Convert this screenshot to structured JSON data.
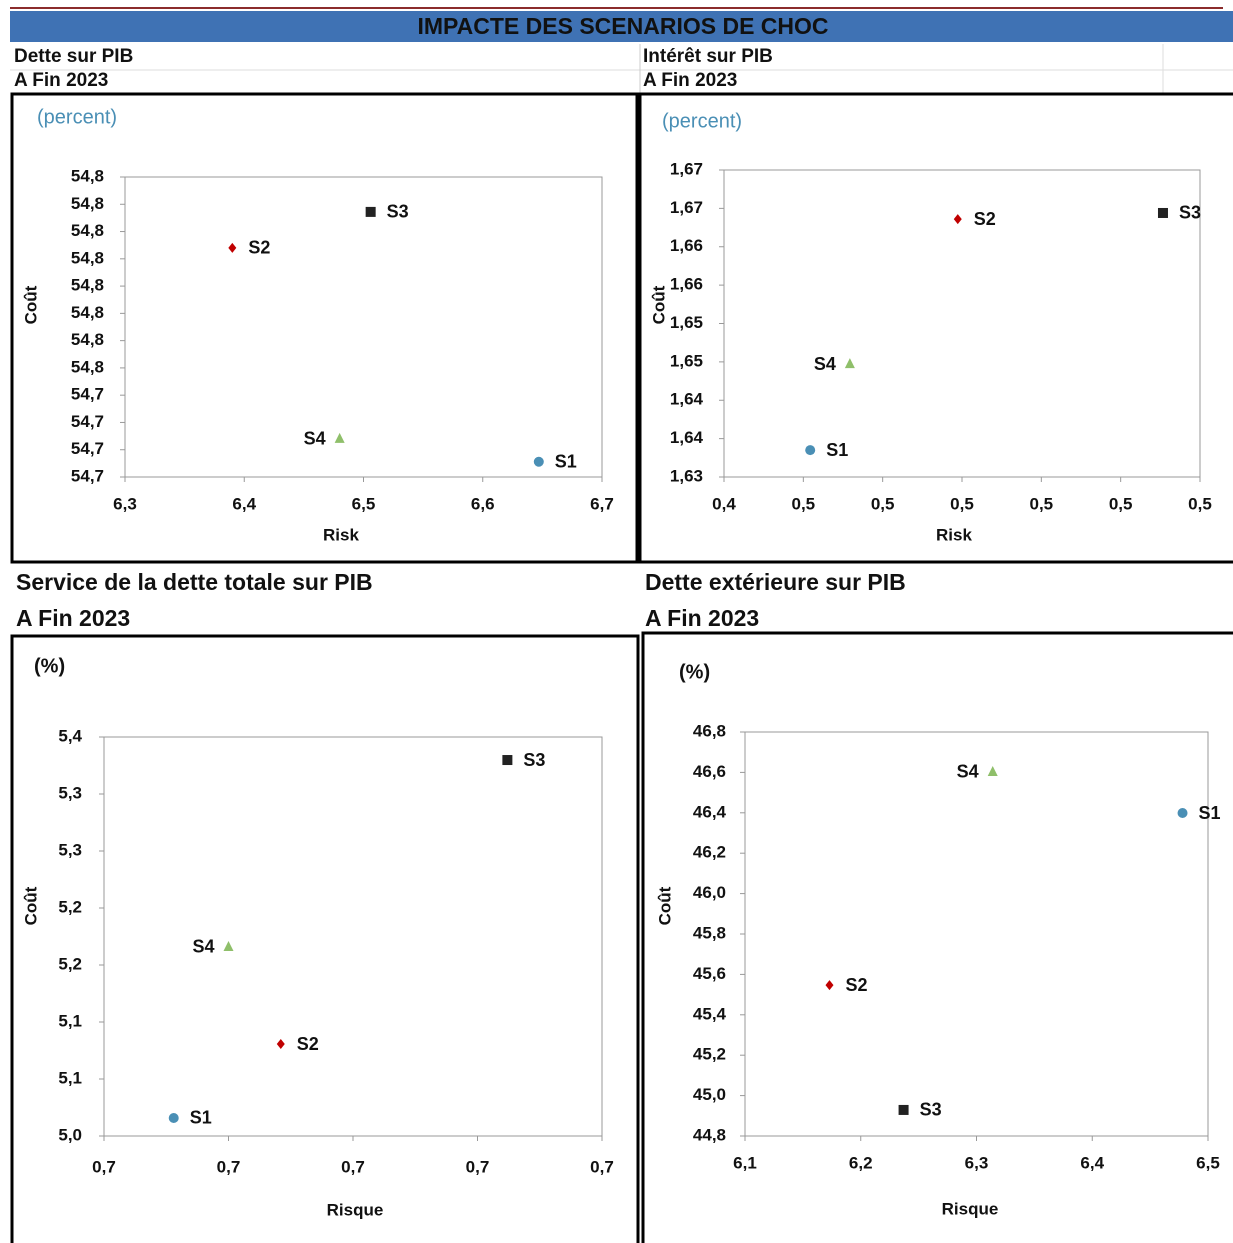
{
  "header": {
    "title": "IMPACTE DES SCENARIOS DE CHOC"
  },
  "chart_data": [
    {
      "type": "scatter",
      "title": "Dette sur PIB",
      "subtitle": "A Fin 2023",
      "annotation": "(percent)",
      "x_label": "Risk",
      "y_label": "Coût",
      "xlim": [
        6.3,
        6.7
      ],
      "xticks": [
        {
          "value": 6.3,
          "label": "6,3"
        },
        {
          "value": 6.4,
          "label": "6,4"
        },
        {
          "value": 6.5,
          "label": "6,5"
        },
        {
          "value": 6.6,
          "label": "6,6"
        },
        {
          "value": 6.7,
          "label": "6,7"
        }
      ],
      "ylim": [
        54.73,
        54.785
      ],
      "yticks": [
        {
          "value": 54.73,
          "label": "54,7"
        },
        {
          "value": 54.735,
          "label": "54,7"
        },
        {
          "value": 54.74,
          "label": "54,7"
        },
        {
          "value": 54.745,
          "label": "54,7"
        },
        {
          "value": 54.75,
          "label": "54,8"
        },
        {
          "value": 54.755,
          "label": "54,8"
        },
        {
          "value": 54.76,
          "label": "54,8"
        },
        {
          "value": 54.765,
          "label": "54,8"
        },
        {
          "value": 54.77,
          "label": "54,8"
        },
        {
          "value": 54.775,
          "label": "54,8"
        },
        {
          "value": 54.78,
          "label": "54,8"
        },
        {
          "value": 54.785,
          "label": "54,8"
        }
      ],
      "series": [
        {
          "name": "S1",
          "color": "#4a8fb5",
          "marker": "circle",
          "x": [
            6.647
          ],
          "values": [
            54.7328
          ]
        },
        {
          "name": "S2",
          "color": "#c00000",
          "marker": "diamond",
          "x": [
            6.39
          ],
          "values": [
            54.772
          ]
        },
        {
          "name": "S3",
          "color": "#222222",
          "marker": "square",
          "x": [
            6.506
          ],
          "values": [
            54.7786
          ]
        },
        {
          "name": "S4",
          "color": "#8fbf6a",
          "marker": "triangle",
          "x": [
            6.48
          ],
          "values": [
            54.737
          ]
        }
      ]
    },
    {
      "type": "scatter",
      "title": "Intérêt sur PIB",
      "subtitle": "A Fin 2023",
      "annotation": "(percent)",
      "x_label": "Risk",
      "y_label": "Coût",
      "xlim": [
        0.44,
        0.53
      ],
      "xticks": [
        {
          "value": 0.44,
          "label": "0,4"
        },
        {
          "value": 0.455,
          "label": "0,5"
        },
        {
          "value": 0.47,
          "label": "0,5"
        },
        {
          "value": 0.485,
          "label": "0,5"
        },
        {
          "value": 0.5,
          "label": "0,5"
        },
        {
          "value": 0.515,
          "label": "0,5"
        },
        {
          "value": 0.53,
          "label": "0,5"
        }
      ],
      "ylim": [
        1.63,
        1.67
      ],
      "yticks": [
        {
          "value": 1.63,
          "label": "1,63"
        },
        {
          "value": 1.635,
          "label": "1,64"
        },
        {
          "value": 1.64,
          "label": "1,64"
        },
        {
          "value": 1.645,
          "label": "1,65"
        },
        {
          "value": 1.65,
          "label": "1,65"
        },
        {
          "value": 1.655,
          "label": "1,66"
        },
        {
          "value": 1.66,
          "label": "1,66"
        },
        {
          "value": 1.665,
          "label": "1,67"
        },
        {
          "value": 1.67,
          "label": "1,67"
        }
      ],
      "series": [
        {
          "name": "S1",
          "color": "#4a8fb5",
          "marker": "circle",
          "x": [
            0.4563
          ],
          "values": [
            1.6335
          ]
        },
        {
          "name": "S2",
          "color": "#c00000",
          "marker": "diamond",
          "x": [
            0.4842
          ],
          "values": [
            1.6636
          ]
        },
        {
          "name": "S3",
          "color": "#222222",
          "marker": "square",
          "x": [
            0.523
          ],
          "values": [
            1.6644
          ]
        },
        {
          "name": "S4",
          "color": "#8fbf6a",
          "marker": "triangle",
          "x": [
            0.4638
          ],
          "values": [
            1.6447
          ]
        }
      ]
    },
    {
      "type": "scatter",
      "title": "Service de la dette totale sur PIB",
      "subtitle": "A Fin 2023",
      "annotation": "(%)",
      "x_label": "Risque",
      "y_label": "Coût",
      "xlim": [
        0.69,
        0.73
      ],
      "xticks": [
        {
          "value": 0.69,
          "label": "0,7"
        },
        {
          "value": 0.7,
          "label": "0,7"
        },
        {
          "value": 0.71,
          "label": "0,7"
        },
        {
          "value": 0.72,
          "label": "0,7"
        },
        {
          "value": 0.73,
          "label": "0,7"
        }
      ],
      "ylim": [
        5.0,
        5.35
      ],
      "yticks": [
        {
          "value": 5.0,
          "label": "5,0"
        },
        {
          "value": 5.05,
          "label": "5,1"
        },
        {
          "value": 5.1,
          "label": "5,1"
        },
        {
          "value": 5.15,
          "label": "5,2"
        },
        {
          "value": 5.2,
          "label": "5,2"
        },
        {
          "value": 5.25,
          "label": "5,3"
        },
        {
          "value": 5.3,
          "label": "5,3"
        },
        {
          "value": 5.35,
          "label": "5,4"
        }
      ],
      "series": [
        {
          "name": "S1",
          "color": "#4a8fb5",
          "marker": "circle",
          "x": [
            0.6956
          ],
          "values": [
            5.0158
          ]
        },
        {
          "name": "S2",
          "color": "#c00000",
          "marker": "diamond",
          "x": [
            0.7042
          ],
          "values": [
            5.0807
          ]
        },
        {
          "name": "S3",
          "color": "#222222",
          "marker": "square",
          "x": [
            0.7224
          ],
          "values": [
            5.3298
          ]
        },
        {
          "name": "S4",
          "color": "#8fbf6a",
          "marker": "triangle",
          "x": [
            0.7
          ],
          "values": [
            5.1658
          ]
        }
      ]
    },
    {
      "type": "scatter",
      "title": "Dette extérieure sur PIB",
      "subtitle": "A Fin 2023",
      "annotation": "(%)",
      "x_label": "Risque",
      "y_label": "Coût",
      "xlim": [
        6.1,
        6.5
      ],
      "xticks": [
        {
          "value": 6.1,
          "label": "6,1"
        },
        {
          "value": 6.2,
          "label": "6,2"
        },
        {
          "value": 6.3,
          "label": "6,3"
        },
        {
          "value": 6.4,
          "label": "6,4"
        },
        {
          "value": 6.5,
          "label": "6,5"
        }
      ],
      "ylim": [
        44.8,
        46.8
      ],
      "yticks": [
        {
          "value": 44.8,
          "label": "44,8"
        },
        {
          "value": 45.0,
          "label": "45,0"
        },
        {
          "value": 45.2,
          "label": "45,2"
        },
        {
          "value": 45.4,
          "label": "45,4"
        },
        {
          "value": 45.6,
          "label": "45,6"
        },
        {
          "value": 45.8,
          "label": "45,8"
        },
        {
          "value": 46.0,
          "label": "46,0"
        },
        {
          "value": 46.2,
          "label": "46,2"
        },
        {
          "value": 46.4,
          "label": "46,4"
        },
        {
          "value": 46.6,
          "label": "46,6"
        },
        {
          "value": 46.8,
          "label": "46,8"
        }
      ],
      "series": [
        {
          "name": "S1",
          "color": "#4a8fb5",
          "marker": "circle",
          "x": [
            6.478
          ],
          "values": [
            46.399
          ]
        },
        {
          "name": "S2",
          "color": "#c00000",
          "marker": "diamond",
          "x": [
            6.173
          ],
          "values": [
            45.547
          ]
        },
        {
          "name": "S3",
          "color": "#222222",
          "marker": "square",
          "x": [
            6.237
          ],
          "values": [
            44.929
          ]
        },
        {
          "name": "S4",
          "color": "#8fbf6a",
          "marker": "triangle",
          "x": [
            6.314
          ],
          "values": [
            46.602
          ]
        }
      ]
    }
  ]
}
